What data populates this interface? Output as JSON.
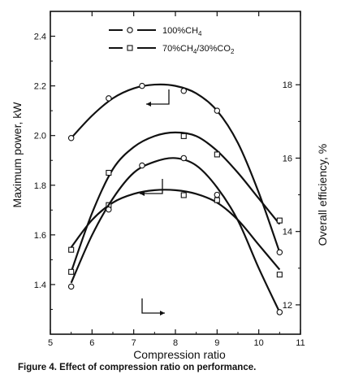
{
  "chart_data": {
    "type": "line",
    "xlabel": "Compression ratio",
    "ylabel_left": "Maximum power, kW",
    "ylabel_right": "Overall efficiency, %",
    "xlim": [
      5,
      11
    ],
    "ylim_left": [
      1.2,
      2.5
    ],
    "ylim_right": [
      11.2,
      20
    ],
    "x_ticks": [
      "5",
      "6",
      "7",
      "8",
      "9",
      "10",
      "11"
    ],
    "left_ticks": [
      "1.4",
      "1.6",
      "1.8",
      "2.0",
      "2.2",
      "2.4"
    ],
    "right_ticks": [
      "12",
      "14",
      "16",
      "18"
    ],
    "legend": [
      {
        "label": "100%CH",
        "sub": "4",
        "rest": "",
        "marker": "circle"
      },
      {
        "label": "70%CH",
        "sub": "4",
        "rest": "/30%CO",
        "sub2": "2",
        "marker": "square"
      }
    ],
    "series": [
      {
        "fuel": "100%CH4",
        "quantity": "Maximum power, kW",
        "axis": "left",
        "marker": "circle",
        "x": [
          5.5,
          6.4,
          7.2,
          8.2,
          9.0,
          10.5
        ],
        "y": [
          1.99,
          2.15,
          2.2,
          2.18,
          2.1,
          1.53
        ],
        "curve": [
          [
            5.5,
            1.99
          ],
          [
            6.0,
            2.08
          ],
          [
            6.5,
            2.15
          ],
          [
            7.0,
            2.19
          ],
          [
            7.5,
            2.205
          ],
          [
            8.0,
            2.2
          ],
          [
            8.5,
            2.17
          ],
          [
            9.0,
            2.1
          ],
          [
            9.5,
            1.97
          ],
          [
            10.0,
            1.77
          ],
          [
            10.5,
            1.53
          ]
        ]
      },
      {
        "fuel": "70%CH4/30%CO2",
        "quantity": "Maximum power, kW",
        "axis": "left",
        "marker": "square",
        "x": [
          5.5,
          6.4,
          8.2,
          9.0,
          10.5
        ],
        "y": [
          1.54,
          1.72,
          1.76,
          1.74,
          1.44
        ],
        "curve": [
          [
            5.5,
            1.55
          ],
          [
            6.0,
            1.66
          ],
          [
            6.5,
            1.73
          ],
          [
            7.0,
            1.765
          ],
          [
            7.5,
            1.78
          ],
          [
            8.0,
            1.78
          ],
          [
            8.5,
            1.765
          ],
          [
            9.0,
            1.73
          ],
          [
            9.5,
            1.66
          ],
          [
            10.0,
            1.56
          ],
          [
            10.5,
            1.46
          ]
        ]
      },
      {
        "fuel": "70%CH4/30%CO2",
        "quantity": "Overall efficiency, %",
        "axis": "right",
        "marker": "square",
        "x": [
          5.5,
          6.4,
          8.2,
          9.0,
          10.5
        ],
        "y": [
          12.9,
          15.6,
          16.6,
          16.1,
          14.3
        ],
        "curve": [
          [
            5.5,
            12.9
          ],
          [
            6.0,
            14.5
          ],
          [
            6.5,
            15.7
          ],
          [
            7.0,
            16.3
          ],
          [
            7.5,
            16.6
          ],
          [
            8.0,
            16.7
          ],
          [
            8.5,
            16.6
          ],
          [
            9.0,
            16.2
          ],
          [
            9.5,
            15.6
          ],
          [
            10.0,
            14.9
          ],
          [
            10.5,
            14.2
          ]
        ]
      },
      {
        "fuel": "100%CH4",
        "quantity": "Overall efficiency, %",
        "axis": "right",
        "marker": "circle",
        "x": [
          5.5,
          6.4,
          7.2,
          8.2,
          9.0,
          10.5
        ],
        "y": [
          12.5,
          14.6,
          15.8,
          16.0,
          15.0,
          11.8
        ],
        "curve": [
          [
            5.5,
            12.6
          ],
          [
            6.0,
            13.9
          ],
          [
            6.5,
            14.9
          ],
          [
            7.0,
            15.6
          ],
          [
            7.5,
            15.9
          ],
          [
            8.0,
            16.0
          ],
          [
            8.5,
            15.8
          ],
          [
            9.0,
            15.2
          ],
          [
            9.5,
            14.3
          ],
          [
            10.0,
            13.0
          ],
          [
            10.5,
            11.8
          ]
        ]
      }
    ],
    "grid": false
  },
  "caption": "Figure 4. Effect of compression ratio on performance."
}
